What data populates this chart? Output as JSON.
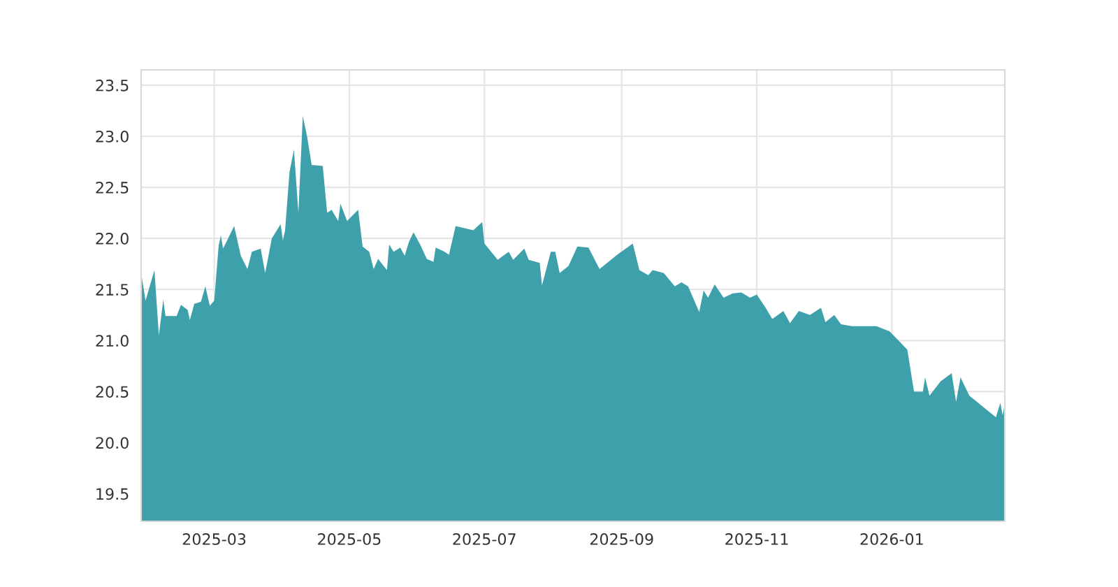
{
  "chart_data": {
    "type": "area",
    "x": [
      "2025-01-27",
      "2025-01-29",
      "2025-02-02",
      "2025-02-04",
      "2025-02-06",
      "2025-02-07",
      "2025-02-12",
      "2025-02-14",
      "2025-02-17",
      "2025-02-18",
      "2025-02-20",
      "2025-02-23",
      "2025-02-25",
      "2025-02-27",
      "2025-03-01",
      "2025-03-03",
      "2025-03-04",
      "2025-03-05",
      "2025-03-10",
      "2025-03-13",
      "2025-03-16",
      "2025-03-18",
      "2025-03-22",
      "2025-03-24",
      "2025-03-27",
      "2025-03-31",
      "2025-04-01",
      "2025-04-02",
      "2025-04-04",
      "2025-04-06",
      "2025-04-08",
      "2025-04-10",
      "2025-04-12",
      "2025-04-14",
      "2025-04-19",
      "2025-04-21",
      "2025-04-23",
      "2025-04-26",
      "2025-04-27",
      "2025-04-30",
      "2025-05-05",
      "2025-05-07",
      "2025-05-10",
      "2025-05-12",
      "2025-05-14",
      "2025-05-18",
      "2025-05-19",
      "2025-05-21",
      "2025-05-24",
      "2025-05-26",
      "2025-05-28",
      "2025-05-30",
      "2025-06-02",
      "2025-06-05",
      "2025-06-08",
      "2025-06-09",
      "2025-06-13",
      "2025-06-15",
      "2025-06-18",
      "2025-06-26",
      "2025-06-30",
      "2025-07-01",
      "2025-07-07",
      "2025-07-12",
      "2025-07-14",
      "2025-07-19",
      "2025-07-21",
      "2025-07-26",
      "2025-07-27",
      "2025-07-31",
      "2025-08-02",
      "2025-08-04",
      "2025-08-08",
      "2025-08-12",
      "2025-08-17",
      "2025-08-22",
      "2025-08-26",
      "2025-08-30",
      "2025-09-06",
      "2025-09-09",
      "2025-09-13",
      "2025-09-15",
      "2025-09-20",
      "2025-09-25",
      "2025-09-28",
      "2025-10-01",
      "2025-10-06",
      "2025-10-08",
      "2025-10-10",
      "2025-10-13",
      "2025-10-17",
      "2025-10-21",
      "2025-10-25",
      "2025-10-29",
      "2025-11-01",
      "2025-11-05",
      "2025-11-08",
      "2025-11-13",
      "2025-11-16",
      "2025-11-20",
      "2025-11-25",
      "2025-11-30",
      "2025-12-02",
      "2025-12-06",
      "2025-12-09",
      "2025-12-14",
      "2025-12-18",
      "2025-12-22",
      "2025-12-25",
      "2025-12-31",
      "2026-01-04",
      "2026-01-08",
      "2026-01-11",
      "2026-01-15",
      "2026-01-16",
      "2026-01-18",
      "2026-01-23",
      "2026-01-28",
      "2026-01-30",
      "2026-02-01",
      "2026-02-05",
      "2026-02-09",
      "2026-02-14",
      "2026-02-17",
      "2026-02-19",
      "2026-02-20",
      "2026-02-21"
    ],
    "series": [
      {
        "color": "#349ba6",
        "values": [
          21.66,
          21.39,
          21.69,
          21.05,
          21.4,
          21.24,
          21.24,
          21.35,
          21.3,
          21.2,
          21.36,
          21.38,
          21.53,
          21.34,
          21.39,
          21.93,
          22.03,
          21.9,
          22.12,
          21.83,
          21.7,
          21.87,
          21.9,
          21.66,
          22.0,
          22.14,
          21.98,
          22.08,
          22.65,
          22.87,
          22.25,
          23.2,
          22.99,
          22.72,
          22.71,
          22.25,
          22.28,
          22.17,
          22.34,
          22.17,
          22.28,
          21.92,
          21.87,
          21.7,
          21.8,
          21.69,
          21.94,
          21.87,
          21.91,
          21.83,
          21.97,
          22.06,
          21.94,
          21.8,
          21.77,
          21.91,
          21.87,
          21.84,
          22.12,
          22.08,
          22.16,
          21.95,
          21.79,
          21.87,
          21.79,
          21.9,
          21.79,
          21.76,
          21.54,
          21.87,
          21.87,
          21.66,
          21.73,
          21.92,
          21.91,
          21.7,
          21.77,
          21.84,
          21.95,
          21.69,
          21.64,
          21.69,
          21.66,
          21.53,
          21.57,
          21.53,
          21.28,
          21.49,
          21.42,
          21.55,
          21.42,
          21.46,
          21.47,
          21.42,
          21.45,
          21.32,
          21.21,
          21.29,
          21.17,
          21.29,
          21.25,
          21.32,
          21.18,
          21.25,
          21.16,
          21.14,
          21.14,
          21.14,
          21.14,
          21.09,
          21.0,
          20.91,
          20.5,
          20.5,
          20.64,
          20.46,
          20.6,
          20.68,
          20.4,
          20.64,
          20.46,
          20.39,
          20.3,
          20.25,
          20.39,
          20.27,
          20.38
        ]
      }
    ],
    "xlim": [
      "2025-01-27",
      "2026-02-21"
    ],
    "xticks": [
      {
        "value": "2025-03-01",
        "label": "2025-03"
      },
      {
        "value": "2025-05-01",
        "label": "2025-05"
      },
      {
        "value": "2025-07-01",
        "label": "2025-07"
      },
      {
        "value": "2025-09-01",
        "label": "2025-09"
      },
      {
        "value": "2025-11-01",
        "label": "2025-11"
      },
      {
        "value": "2026-01-01",
        "label": "2026-01"
      }
    ],
    "ylim": [
      19.23,
      23.65
    ],
    "yticks": [
      19.5,
      {
        "value": 20,
        "label": "20.0"
      },
      20.5,
      {
        "value": 21,
        "label": "21.0"
      },
      21.5,
      {
        "value": 22,
        "label": "22.0"
      },
      22.5,
      {
        "value": 23,
        "label": "23.0"
      },
      23.5
    ],
    "grid": true
  }
}
